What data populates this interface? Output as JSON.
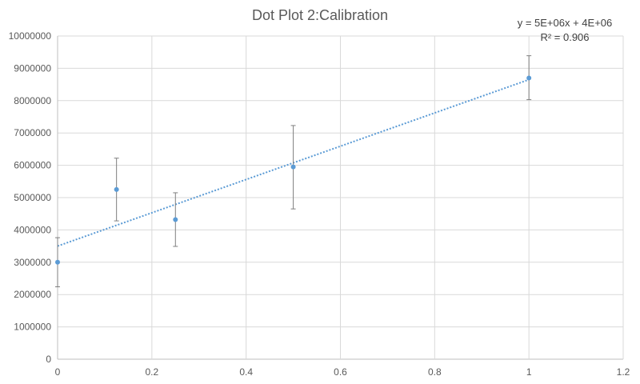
{
  "chart_data": {
    "type": "scatter",
    "title": "Dot Plot 2:Calibration",
    "xlabel": "",
    "ylabel": "",
    "xlim": [
      0,
      1.2
    ],
    "ylim": [
      0,
      10000000
    ],
    "x_ticks": [
      "0",
      "0.2",
      "0.4",
      "0.6",
      "0.8",
      "1",
      "1.2"
    ],
    "y_ticks": [
      "0",
      "1000000",
      "2000000",
      "3000000",
      "4000000",
      "5000000",
      "6000000",
      "7000000",
      "8000000",
      "9000000",
      "10000000"
    ],
    "grid": true,
    "series": [
      {
        "x": [
          0,
          0.125,
          0.25,
          0.5,
          1
        ],
        "y": [
          3000000,
          5250000,
          4320000,
          5950000,
          8700000
        ],
        "error_low": [
          2240000,
          4280000,
          3490000,
          4650000,
          8030000
        ],
        "error_high": [
          3760000,
          6220000,
          5150000,
          7230000,
          9390000
        ]
      }
    ],
    "trendline": {
      "type": "linear",
      "x": [
        0,
        1
      ],
      "y": [
        3500000,
        8650000
      ],
      "style": "dotted",
      "equation": "y = 5E+06x + 4E+06",
      "r_squared": "R² = 0.906"
    },
    "colors": {
      "point": "#5b9bd5",
      "trendline": "#5b9bd5",
      "error_bar": "#7f7f7f"
    }
  }
}
